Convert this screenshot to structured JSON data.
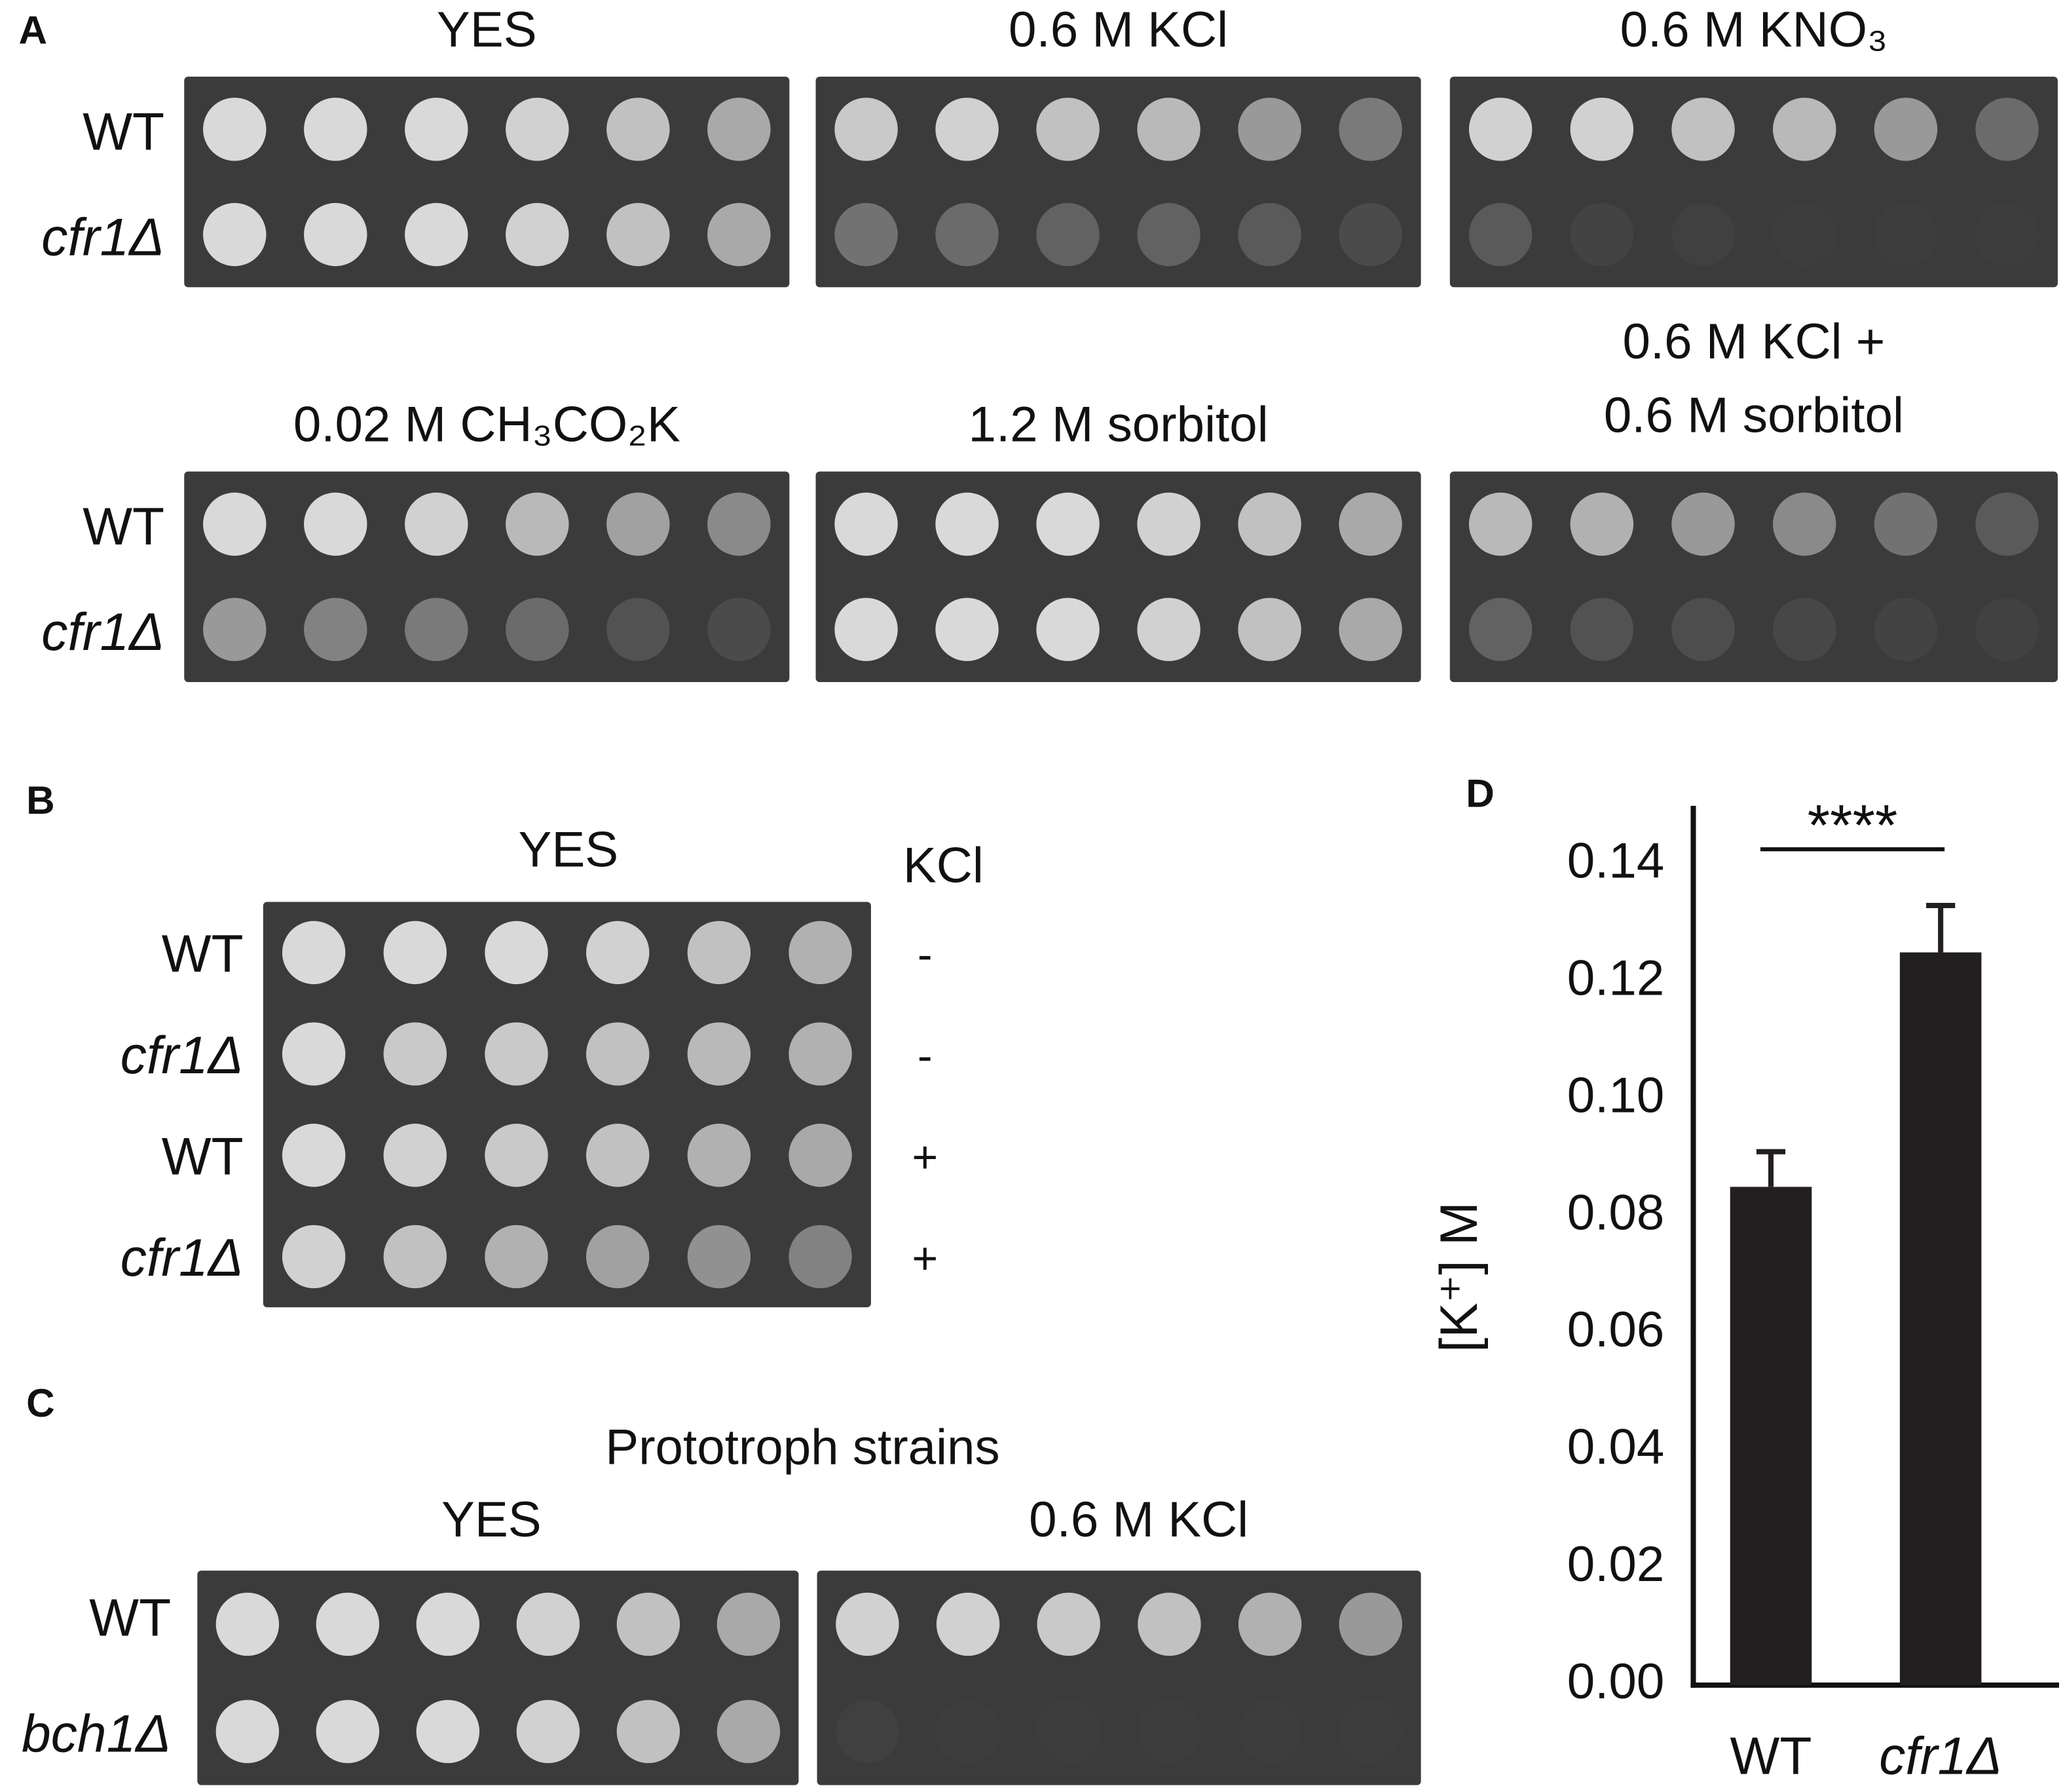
{
  "panels": {
    "A": {
      "label": "A",
      "titles": [
        [
          "YES"
        ],
        [
          "0.6 M KCl"
        ],
        [
          "0.6 M KNO₃"
        ],
        [
          "0.02 M CH₃CO₂K"
        ],
        [
          "1.2 M sorbitol"
        ],
        [
          "0.6 M KCl +",
          "0.6 M sorbitol"
        ]
      ],
      "row_labels": [
        [
          "WT",
          "cfr1Δ"
        ],
        [
          "WT",
          "cfr1Δ"
        ]
      ]
    },
    "B": {
      "label": "B",
      "title": "YES",
      "kcl_header": "KCl",
      "rows": [
        {
          "strain": "WT",
          "kcl": "-"
        },
        {
          "strain": "cfr1Δ",
          "kcl": "-"
        },
        {
          "strain": "WT",
          "kcl": "+"
        },
        {
          "strain": "cfr1Δ",
          "kcl": "+"
        }
      ]
    },
    "C": {
      "label": "C",
      "title": "Prototroph strains",
      "plates": [
        "YES",
        "0.6 M KCl"
      ],
      "rows": [
        "WT",
        "bch1Δ"
      ]
    }
  },
  "chart_data": {
    "type": "bar",
    "panel_label": "D",
    "categories": [
      "WT",
      "cfr1Δ"
    ],
    "values": [
      0.085,
      0.125
    ],
    "errors": [
      0.006,
      0.008
    ],
    "color": "#231f20",
    "ylabel": "[K⁺] M",
    "annotation": "****",
    "ylim": [
      0,
      0.15
    ],
    "yticks": [
      {
        "value": 0,
        "label": "0.00"
      },
      {
        "value": 0.02,
        "label": "0.02"
      },
      {
        "value": 0.04,
        "label": "0.04"
      },
      {
        "value": 0.06,
        "label": "0.06"
      },
      {
        "value": 0.08,
        "label": "0.08"
      },
      {
        "value": 0.1,
        "label": "0.10"
      },
      {
        "value": 0.12,
        "label": "0.12"
      },
      {
        "value": 0.14,
        "label": "0.14"
      }
    ]
  }
}
